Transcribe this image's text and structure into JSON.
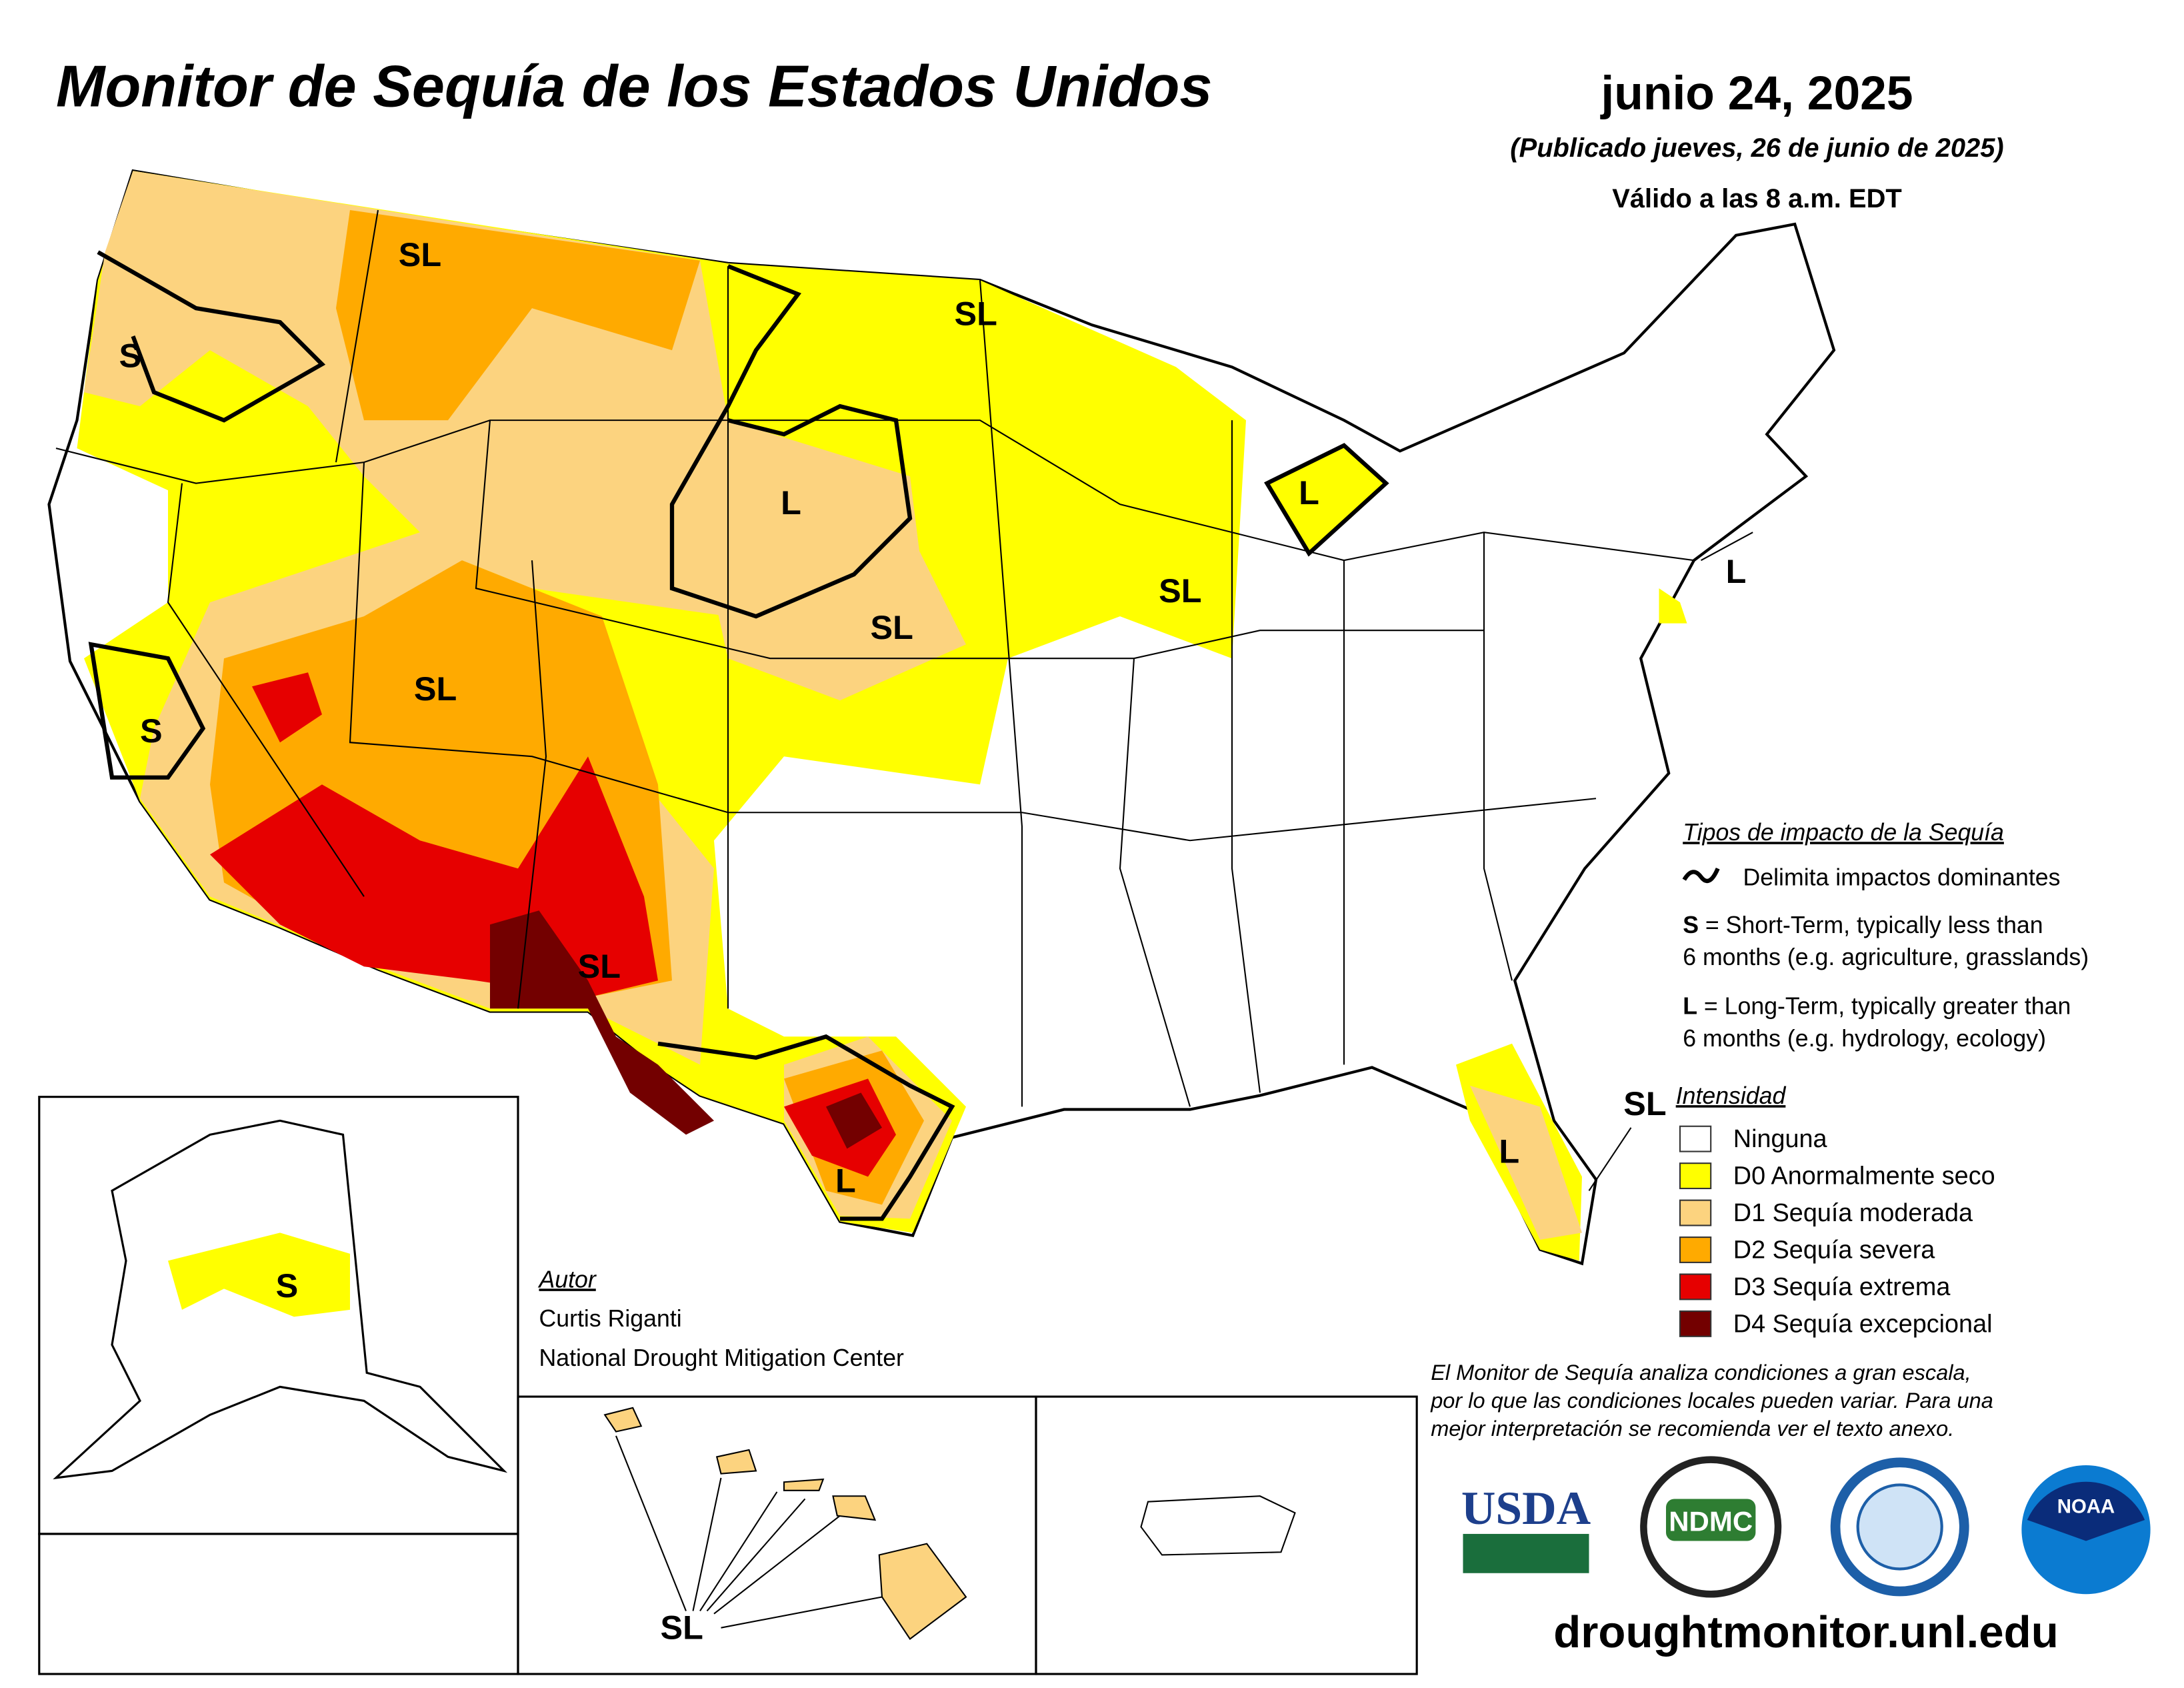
{
  "header": {
    "title": "Monitor de Sequía de los Estados Unidos",
    "date": "junio 24, 2025",
    "published": "(Publicado jueves, 26 de junio de 2025)",
    "valid": "Válido a las 8 a.m. EDT"
  },
  "impact_legend": {
    "title": "Tipos de impacto de la Sequía",
    "delimiter": "Delimita impactos dominantes",
    "short_key": "S",
    "short_line1": " = Short-Term, typically less than",
    "short_line2": "6 months (e.g. agriculture, grasslands)",
    "long_key": "L",
    "long_line1": " = Long-Term, typically greater than",
    "long_line2": "6 months (e.g. hydrology, ecology)"
  },
  "intensity_legend": {
    "title": "Intensidad",
    "items": [
      {
        "label": "Ninguna",
        "color": "#ffffff"
      },
      {
        "label": "D0 Anormalmente seco",
        "color": "#ffff00"
      },
      {
        "label": "D1 Sequía moderada",
        "color": "#fcd37f"
      },
      {
        "label": "D2 Sequía severa",
        "color": "#ffaa00"
      },
      {
        "label": "D3 Sequía extrema",
        "color": "#e60000"
      },
      {
        "label": "D4 Sequía excepcional",
        "color": "#730000"
      }
    ]
  },
  "map_labels": [
    "S",
    "SL",
    "SL",
    "L",
    "L",
    "SL",
    "SL",
    "L",
    "S",
    "SL",
    "SL",
    "L",
    "L",
    "SL",
    "S",
    "SL"
  ],
  "author": {
    "title": "Autor",
    "name": "Curtis Riganti",
    "org": "National Drought Mitigation Center"
  },
  "disclaimer": [
    "El Monitor de Sequía analiza condiciones a gran escala,",
    "por lo que las condiciones locales pueden variar. Para una",
    "mejor interpretación se recomienda ver el texto anexo."
  ],
  "logos": [
    "USDA",
    "NDMC",
    "NOAA"
  ],
  "url": "droughtmonitor.unl.edu"
}
